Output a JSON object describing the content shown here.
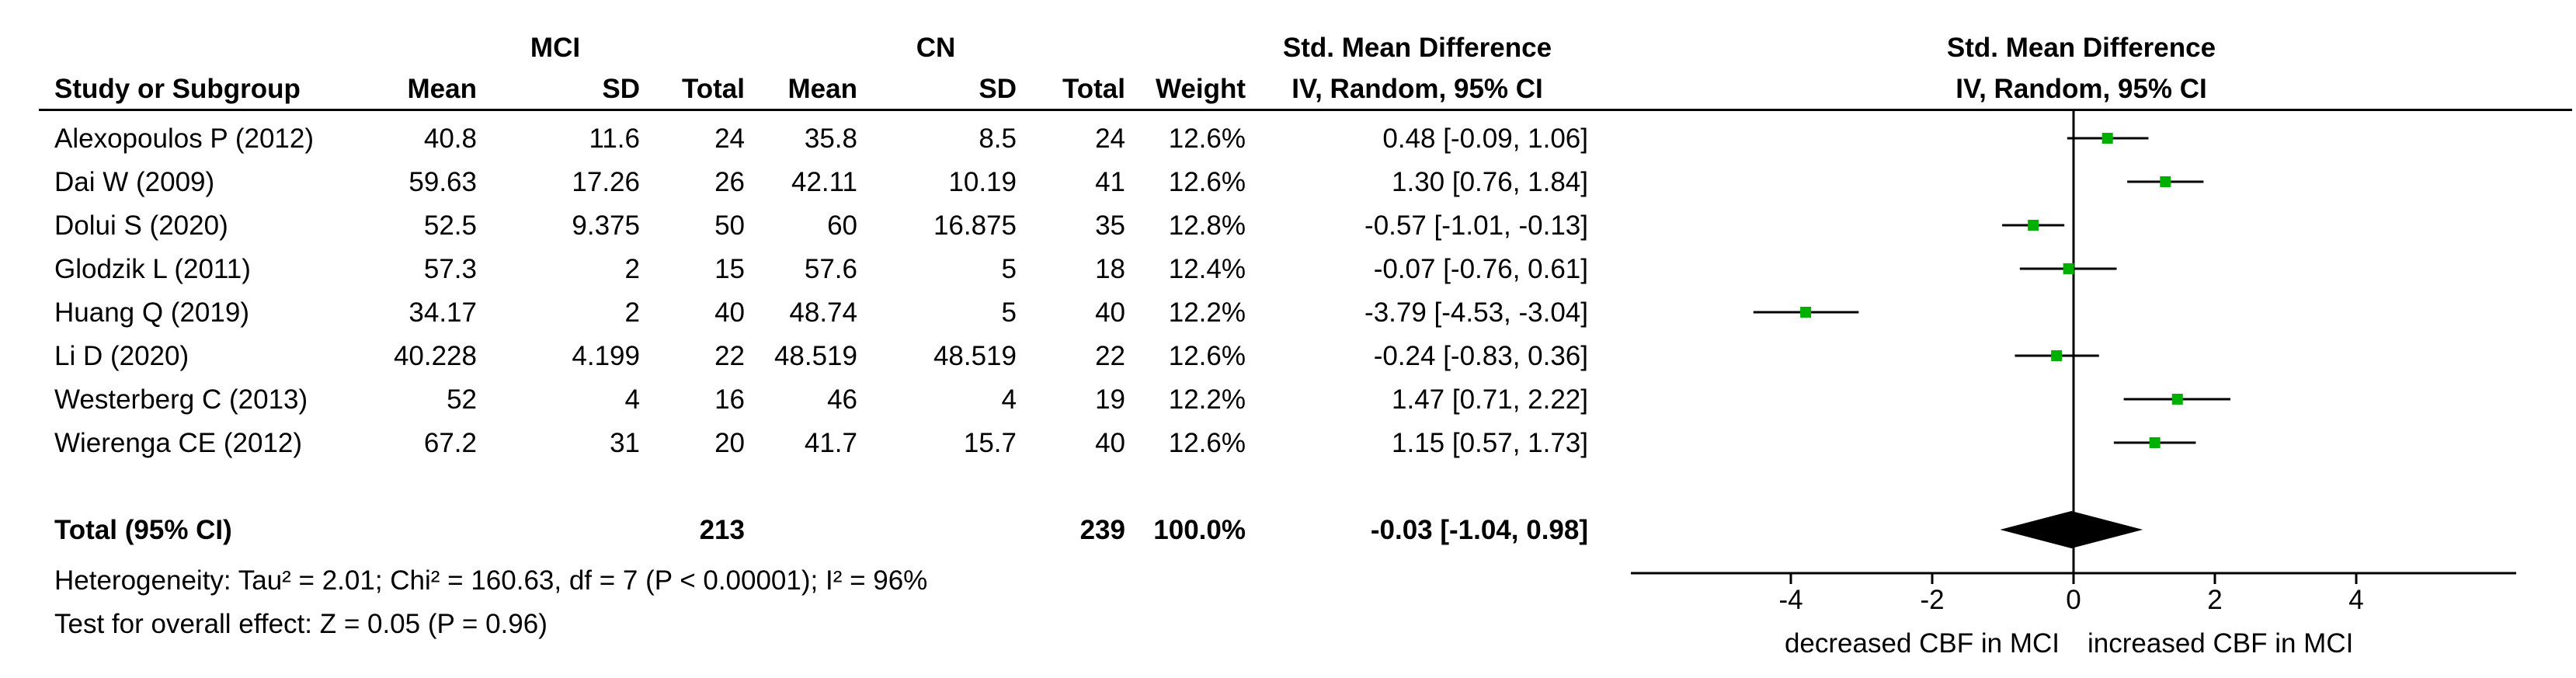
{
  "table": {
    "group_labels": {
      "experimental": "MCI",
      "control": "CN",
      "effect": "Std. Mean Difference"
    },
    "columns": {
      "study": "Study or Subgroup",
      "exp_mean": "Mean",
      "exp_sd": "SD",
      "exp_total": "Total",
      "ctl_mean": "Mean",
      "ctl_sd": "SD",
      "ctl_total": "Total",
      "weight": "Weight",
      "ci": "IV, Random, 95% CI"
    },
    "rows": [
      {
        "study": "Alexopoulos P (2012)",
        "exp_mean": "40.8",
        "exp_sd": "11.6",
        "exp_total": "24",
        "ctl_mean": "35.8",
        "ctl_sd": "8.5",
        "ctl_total": "24",
        "weight": "12.6%",
        "ci": "0.48 [-0.09, 1.06]"
      },
      {
        "study": "Dai W (2009)",
        "exp_mean": "59.63",
        "exp_sd": "17.26",
        "exp_total": "26",
        "ctl_mean": "42.11",
        "ctl_sd": "10.19",
        "ctl_total": "41",
        "weight": "12.6%",
        "ci": "1.30 [0.76, 1.84]"
      },
      {
        "study": "Dolui S (2020)",
        "exp_mean": "52.5",
        "exp_sd": "9.375",
        "exp_total": "50",
        "ctl_mean": "60",
        "ctl_sd": "16.875",
        "ctl_total": "35",
        "weight": "12.8%",
        "ci": "-0.57 [-1.01, -0.13]"
      },
      {
        "study": "Glodzik L (2011)",
        "exp_mean": "57.3",
        "exp_sd": "2",
        "exp_total": "15",
        "ctl_mean": "57.6",
        "ctl_sd": "5",
        "ctl_total": "18",
        "weight": "12.4%",
        "ci": "-0.07 [-0.76, 0.61]"
      },
      {
        "study": "Huang Q (2019)",
        "exp_mean": "34.17",
        "exp_sd": "2",
        "exp_total": "40",
        "ctl_mean": "48.74",
        "ctl_sd": "5",
        "ctl_total": "40",
        "weight": "12.2%",
        "ci": "-3.79 [-4.53, -3.04]"
      },
      {
        "study": "Li D (2020)",
        "exp_mean": "40.228",
        "exp_sd": "4.199",
        "exp_total": "22",
        "ctl_mean": "48.519",
        "ctl_sd": "48.519",
        "ctl_total": "22",
        "weight": "12.6%",
        "ci": "-0.24 [-0.83, 0.36]"
      },
      {
        "study": "Westerberg C (2013)",
        "exp_mean": "52",
        "exp_sd": "4",
        "exp_total": "16",
        "ctl_mean": "46",
        "ctl_sd": "4",
        "ctl_total": "19",
        "weight": "12.2%",
        "ci": "1.47 [0.71, 2.22]"
      },
      {
        "study": "Wierenga CE (2012)",
        "exp_mean": "67.2",
        "exp_sd": "31",
        "exp_total": "20",
        "ctl_mean": "41.7",
        "ctl_sd": "15.7",
        "ctl_total": "40",
        "weight": "12.6%",
        "ci": "1.15 [0.57, 1.73]"
      }
    ],
    "total": {
      "study": "Total (95% CI)",
      "exp_total": "213",
      "ctl_total": "239",
      "weight": "100.0%",
      "ci": "-0.03 [-1.04, 0.98]"
    },
    "heterogeneity": "Heterogeneity: Tau² = 2.01; Chi² = 160.63, df = 7 (P < 0.00001); I² = 96%",
    "overall_effect": "Test for overall effect: Z = 0.05 (P = 0.96)"
  },
  "chart_data": {
    "type": "scatter",
    "title": "Std. Mean Difference",
    "subtitle": "IV, Random, 95% CI",
    "xlim": [
      -6,
      6
    ],
    "xticks": [
      -4,
      -2,
      0,
      2,
      4
    ],
    "xtick_labels": [
      "-4",
      "-2",
      "0",
      "2",
      "4"
    ],
    "left_label": "decreased CBF in MCI",
    "right_label": "increased CBF in MCI",
    "studies": [
      {
        "estimate": 0.48,
        "lower": -0.09,
        "upper": 1.06
      },
      {
        "estimate": 1.3,
        "lower": 0.76,
        "upper": 1.84
      },
      {
        "estimate": -0.57,
        "lower": -1.01,
        "upper": -0.13
      },
      {
        "estimate": -0.07,
        "lower": -0.76,
        "upper": 0.61
      },
      {
        "estimate": -3.79,
        "lower": -4.53,
        "upper": -3.04
      },
      {
        "estimate": -0.24,
        "lower": -0.83,
        "upper": 0.36
      },
      {
        "estimate": 1.47,
        "lower": 0.71,
        "upper": 2.22
      },
      {
        "estimate": 1.15,
        "lower": 0.57,
        "upper": 1.73
      }
    ],
    "summary": {
      "estimate": -0.03,
      "lower": -1.04,
      "upper": 0.98
    },
    "marker_color": "#00b000",
    "line_color": "#000000"
  }
}
